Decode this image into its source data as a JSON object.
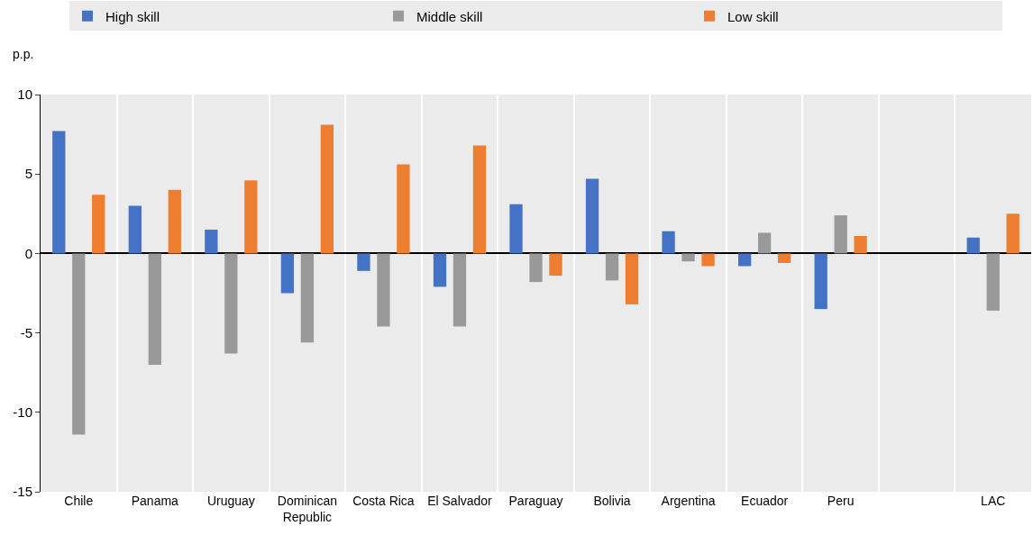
{
  "chart_data": {
    "type": "bar",
    "ylabel": "p.p.",
    "categories": [
      "Chile",
      "Panama",
      "Uruguay",
      "Dominican Republic",
      "Costa Rica",
      "El Salvador",
      "Paraguay",
      "Bolivia",
      "Argentina",
      "Ecuador",
      "Peru",
      null,
      "LAC"
    ],
    "series": [
      {
        "name": "High skill",
        "color": "#4472c4",
        "values": [
          7.7,
          3.0,
          1.5,
          -2.5,
          -1.1,
          -2.1,
          3.1,
          4.7,
          1.4,
          -0.8,
          -3.5,
          null,
          1.0
        ]
      },
      {
        "name": "Middle skill",
        "color": "#999999",
        "values": [
          -11.4,
          -7.0,
          -6.3,
          -5.6,
          -4.6,
          -4.6,
          -1.8,
          -1.7,
          -0.5,
          1.3,
          2.4,
          null,
          -3.6
        ]
      },
      {
        "name": "Low skill",
        "color": "#ed7d31",
        "values": [
          3.7,
          4.0,
          4.6,
          8.1,
          5.6,
          6.8,
          -1.4,
          -3.2,
          -0.8,
          -0.6,
          1.1,
          null,
          2.5
        ]
      }
    ],
    "ylim": [
      -15,
      10
    ],
    "yticks": [
      -15,
      -10,
      -5,
      0,
      5,
      10
    ],
    "grid": "x",
    "legend": "top"
  }
}
